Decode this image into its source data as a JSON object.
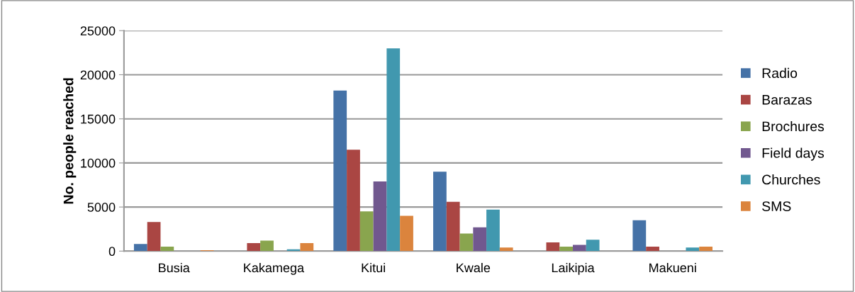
{
  "chart_data": {
    "type": "bar",
    "ylabel": "No. people reached",
    "categories": [
      "Busia",
      "Kakamega",
      "Kitui",
      "Kwale",
      "Laikipia",
      "Makueni"
    ],
    "series": [
      {
        "name": "Radio",
        "color": "#4572a7",
        "values": [
          800,
          null,
          18200,
          9000,
          null,
          3500
        ]
      },
      {
        "name": "Barazas",
        "color": "#aa4643",
        "values": [
          3300,
          900,
          11500,
          5600,
          1000,
          500
        ]
      },
      {
        "name": "Brochures",
        "color": "#89a54e",
        "values": [
          500,
          1200,
          4500,
          2000,
          500,
          null
        ]
      },
      {
        "name": "Field days",
        "color": "#71588f",
        "values": [
          null,
          null,
          7900,
          2700,
          700,
          null
        ]
      },
      {
        "name": "Churches",
        "color": "#4198af",
        "values": [
          null,
          200,
          23000,
          4700,
          1300,
          400
        ]
      },
      {
        "name": "SMS",
        "color": "#db843d",
        "values": [
          100,
          900,
          4000,
          400,
          null,
          500
        ]
      }
    ],
    "ylim": [
      0,
      25000
    ],
    "yticks": [
      0,
      5000,
      10000,
      15000,
      20000,
      25000
    ],
    "grid": "y",
    "legend": "right"
  }
}
